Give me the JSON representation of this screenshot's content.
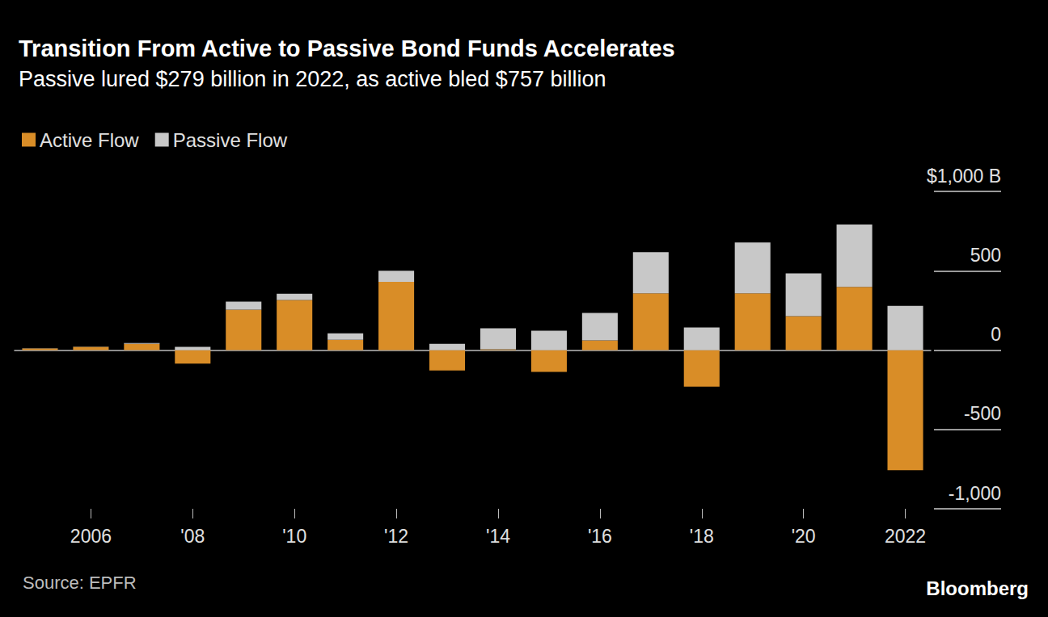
{
  "chart_data": {
    "type": "bar",
    "title": "Transition From Active to Passive Bond Funds Accelerates",
    "subtitle": "Passive lured $279 billion in 2022, as active bled $757 billion",
    "annotations": [
      "Source: EPFR",
      "Bloomberg"
    ],
    "categories": [
      null,
      "2006",
      null,
      "'08",
      null,
      "'10",
      null,
      "'12",
      null,
      "'14",
      null,
      "'16",
      null,
      "'18",
      null,
      "'20",
      null,
      "2022"
    ],
    "series": [
      {
        "name": "Active Flow",
        "color": "#d98d27",
        "values": [
          10,
          20,
          40,
          -85,
          255,
          315,
          65,
          430,
          -128,
          5,
          -138,
          61,
          357,
          -230,
          357,
          214,
          398,
          -757
        ]
      },
      {
        "name": "Passive Flow",
        "color": "#c8c8c8",
        "values": [
          2,
          2,
          5,
          20,
          50,
          40,
          40,
          70,
          40,
          133,
          122,
          173,
          260,
          143,
          321,
          270,
          393,
          279
        ]
      }
    ],
    "ylim": [
      -1000,
      1000
    ],
    "yticks": [
      {
        "value": -1000,
        "label": "-1,000"
      },
      -500,
      0,
      500,
      {
        "value": 1000,
        "label": "$1,000 B"
      }
    ],
    "stacked": true,
    "grid": true,
    "legend": "top-left"
  }
}
